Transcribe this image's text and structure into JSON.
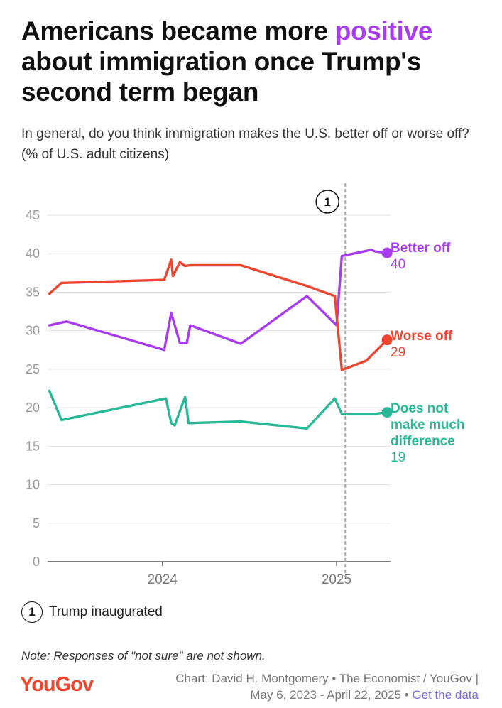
{
  "title": {
    "part1": "Americans became more ",
    "highlight": "positive",
    "part2": " about immigration once Trump's second term began"
  },
  "subtitle": "In general, do you think immigration makes the U.S. better off or worse off? (% of U.S. adult citizens)",
  "colors": {
    "better": "#a83cf0",
    "worse": "#ee4530",
    "nodiff": "#2ab996",
    "grid": "#e1e1e1",
    "annotation": "#aaaaaa"
  },
  "annotation": {
    "marker": "1",
    "date": 2025.05,
    "text": "Trump inaugurated"
  },
  "note": "Note: Responses of \"not sure\" are not shown.",
  "footer": {
    "logo": "YouGov",
    "credit_line1": "Chart: David H. Montgomery • The Economist / YouGov |",
    "credit_line2": "May 6, 2023 - April 22, 2025 •",
    "link": "Get the data"
  },
  "chart_data": {
    "type": "line",
    "title": "Americans became more positive about immigration once Trump's second term began",
    "xlabel": "",
    "ylabel": "",
    "xlim": [
      2023.34,
      2025.31
    ],
    "ylim": [
      0,
      45
    ],
    "y_ticks": [
      0,
      5,
      10,
      15,
      20,
      25,
      30,
      35,
      40,
      45
    ],
    "x_ticks": [
      {
        "value": 2024.0,
        "label": "2024"
      },
      {
        "value": 2025.0,
        "label": "2025"
      }
    ],
    "grid": true,
    "series": [
      {
        "name": "Better off",
        "key": "better",
        "final_label": "40",
        "label_lines": [
          "Better off"
        ],
        "points": [
          [
            2023.35,
            30.7
          ],
          [
            2023.45,
            31.2
          ],
          [
            2024.01,
            27.5
          ],
          [
            2024.05,
            32.3
          ],
          [
            2024.1,
            28.4
          ],
          [
            2024.14,
            28.4
          ],
          [
            2024.16,
            30.7
          ],
          [
            2024.45,
            28.3
          ],
          [
            2024.83,
            34.5
          ],
          [
            2025.0,
            30.7
          ],
          [
            2025.03,
            39.7
          ],
          [
            2025.2,
            40.5
          ],
          [
            2025.22,
            40.3
          ],
          [
            2025.29,
            40.1
          ]
        ]
      },
      {
        "name": "Worse off",
        "key": "worse",
        "final_label": "29",
        "label_lines": [
          "Worse off"
        ],
        "points": [
          [
            2023.35,
            34.8
          ],
          [
            2023.42,
            36.2
          ],
          [
            2024.01,
            36.6
          ],
          [
            2024.05,
            39.2
          ],
          [
            2024.06,
            37.1
          ],
          [
            2024.1,
            38.9
          ],
          [
            2024.13,
            38.4
          ],
          [
            2024.16,
            38.5
          ],
          [
            2024.45,
            38.5
          ],
          [
            2024.83,
            35.8
          ],
          [
            2024.99,
            34.5
          ],
          [
            2025.03,
            24.9
          ],
          [
            2025.17,
            26.1
          ],
          [
            2025.29,
            28.8
          ]
        ]
      },
      {
        "name": "Does not make much difference",
        "key": "nodiff",
        "final_label": "19",
        "label_lines": [
          "Does not",
          "make much",
          "difference"
        ],
        "points": [
          [
            2023.35,
            22.2
          ],
          [
            2023.42,
            18.4
          ],
          [
            2024.02,
            21.2
          ],
          [
            2024.05,
            18.0
          ],
          [
            2024.07,
            17.7
          ],
          [
            2024.13,
            21.4
          ],
          [
            2024.15,
            18.0
          ],
          [
            2024.45,
            18.2
          ],
          [
            2024.83,
            17.3
          ],
          [
            2024.99,
            21.2
          ],
          [
            2025.03,
            19.2
          ],
          [
            2025.22,
            19.2
          ],
          [
            2025.29,
            19.4
          ]
        ]
      }
    ]
  }
}
